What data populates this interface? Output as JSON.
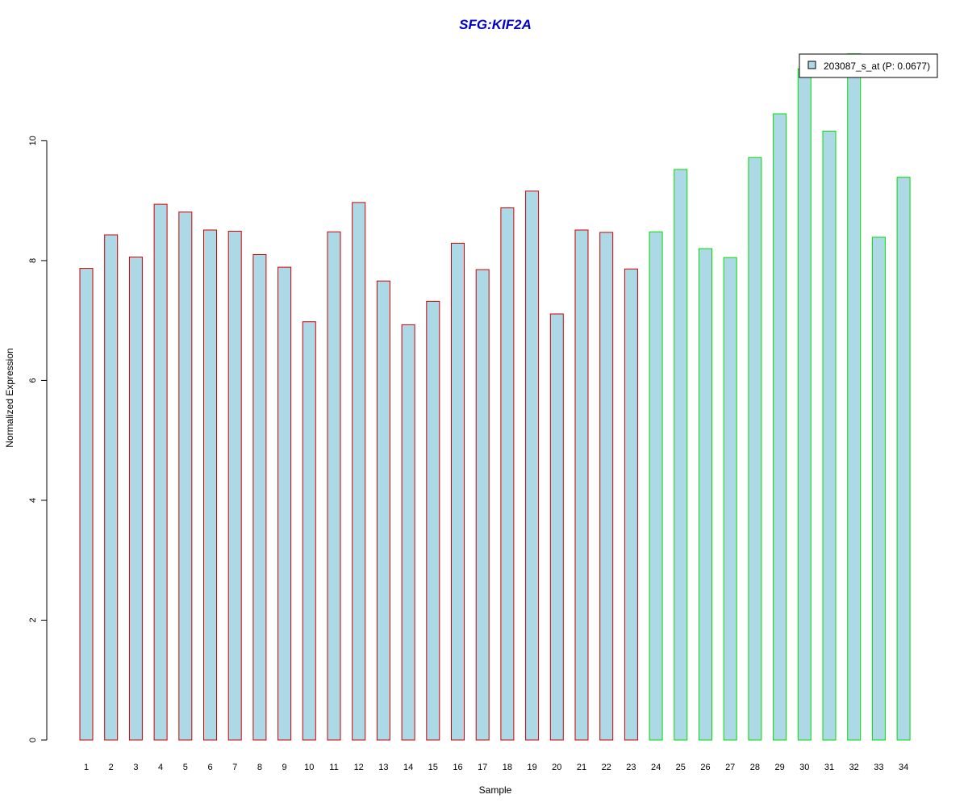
{
  "chart_data": {
    "type": "bar",
    "title": "SFG:KIF2A",
    "xlabel": "Sample",
    "ylabel": "Normalized Expression",
    "categories": [
      "1",
      "2",
      "3",
      "4",
      "5",
      "6",
      "7",
      "8",
      "9",
      "10",
      "11",
      "12",
      "13",
      "14",
      "15",
      "16",
      "17",
      "18",
      "19",
      "20",
      "21",
      "22",
      "23",
      "24",
      "25",
      "26",
      "27",
      "28",
      "29",
      "30",
      "31",
      "32",
      "33",
      "34"
    ],
    "series": [
      {
        "name": "203087_s_at (P: 0.0677)",
        "values": [
          7.87,
          8.43,
          8.06,
          8.94,
          8.81,
          8.51,
          8.49,
          8.1,
          7.89,
          6.98,
          8.48,
          8.97,
          7.66,
          6.93,
          7.32,
          8.29,
          7.85,
          8.88,
          9.16,
          7.11,
          8.51,
          8.47,
          7.86,
          8.48,
          9.52,
          8.2,
          8.05,
          9.72,
          10.45,
          11.2,
          10.16,
          11.45,
          8.39,
          9.39
        ],
        "fill": "#add8e6"
      }
    ],
    "group_border_colors": [
      "#d00000",
      "#d00000",
      "#d00000",
      "#d00000",
      "#d00000",
      "#d00000",
      "#d00000",
      "#d00000",
      "#d00000",
      "#d00000",
      "#d00000",
      "#d00000",
      "#d00000",
      "#d00000",
      "#d00000",
      "#d00000",
      "#d00000",
      "#d00000",
      "#d00000",
      "#d00000",
      "#d00000",
      "#d00000",
      "#d00000",
      "#00dd00",
      "#00dd00",
      "#00dd00",
      "#00dd00",
      "#00dd00",
      "#00dd00",
      "#00dd00",
      "#00dd00",
      "#00dd00",
      "#00dd00",
      "#00dd00"
    ],
    "yticks": [
      0,
      2,
      4,
      6,
      8,
      10
    ],
    "ylim": [
      0,
      11.5
    ],
    "grid": false,
    "legend_position": "top-right"
  }
}
